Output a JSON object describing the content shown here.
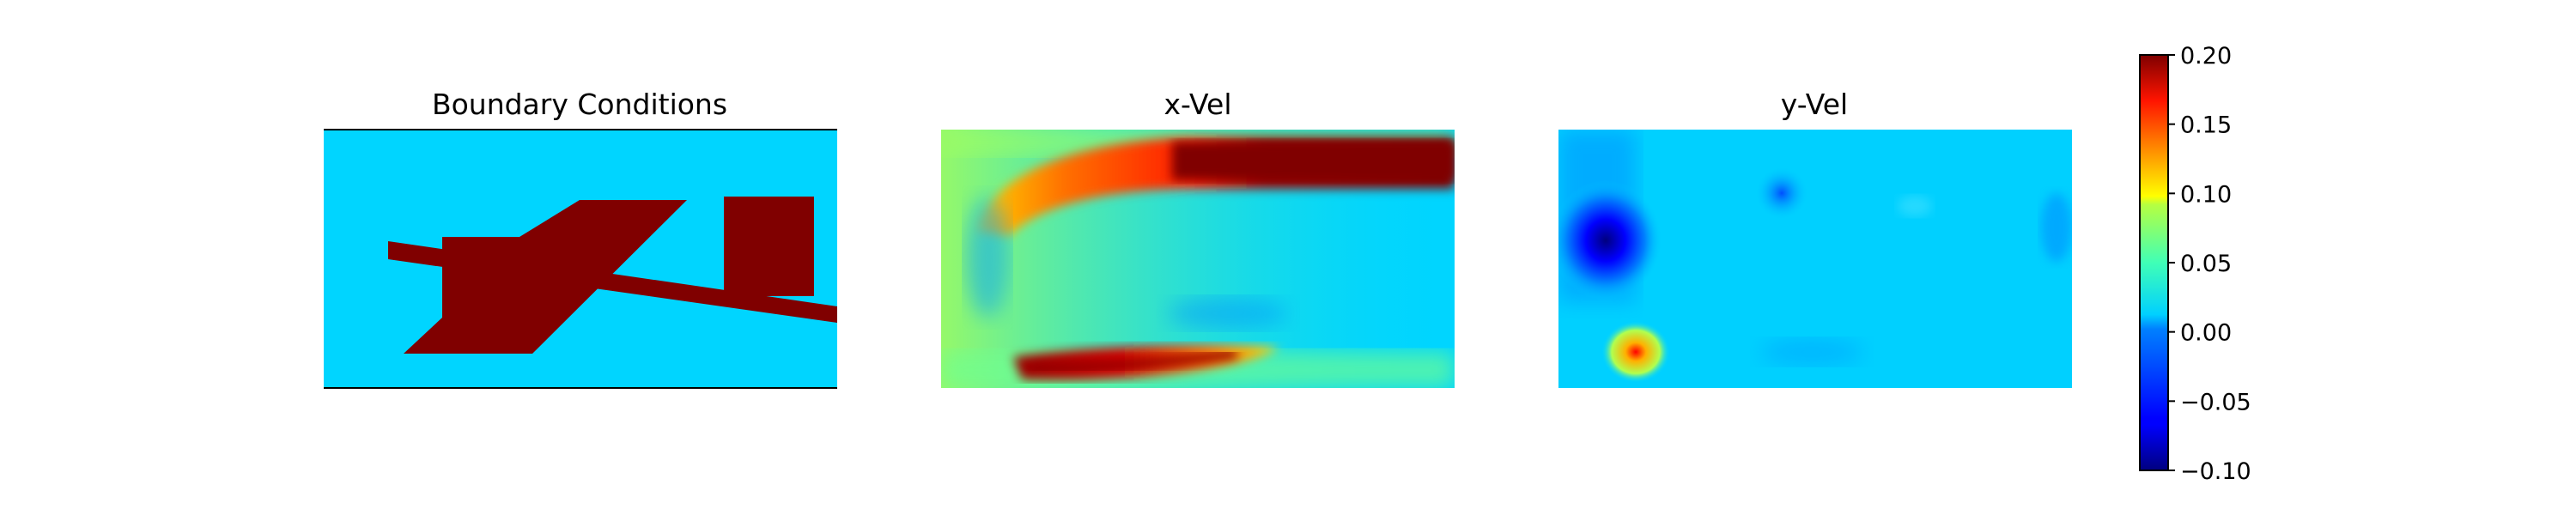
{
  "chart_data": {
    "type": "heatmap",
    "colormap": "jet",
    "panels": [
      {
        "title": "Boundary Conditions"
      },
      {
        "title": "x-Vel"
      },
      {
        "title": "y-Vel"
      }
    ],
    "colorbar": {
      "min": -0.1,
      "max": 0.2,
      "ticks": [
        "0.20",
        "0.15",
        "0.10",
        "0.05",
        "0.00",
        "−0.05",
        "−0.10"
      ],
      "tick_values": [
        0.2,
        0.15,
        0.1,
        0.05,
        0.0,
        -0.05,
        -0.1
      ]
    },
    "axes": "off",
    "legend": "none"
  }
}
